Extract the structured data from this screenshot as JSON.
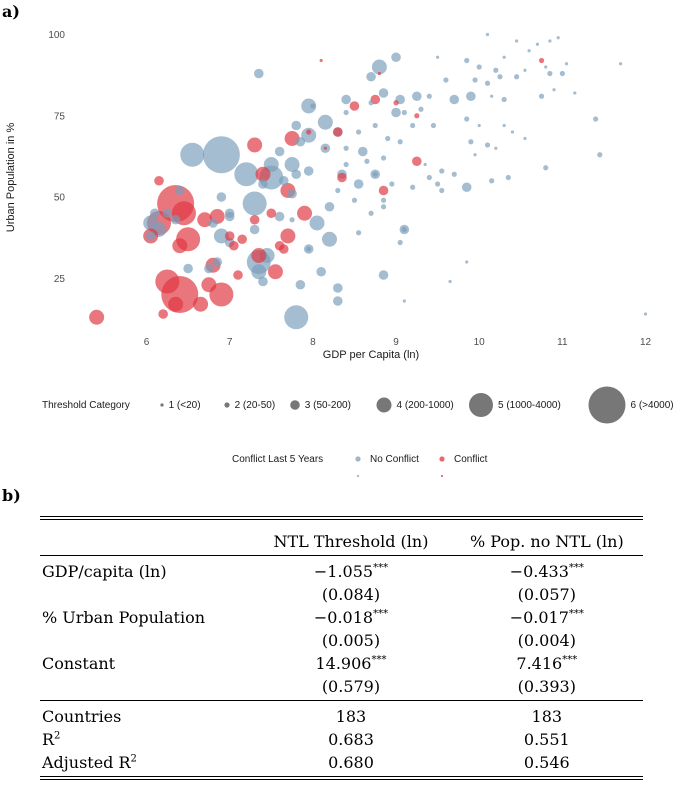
{
  "panel_a_letter": "a)",
  "panel_b_letter": "b)",
  "colors": {
    "no_conflict": "#7b9dbb",
    "conflict": "#e0353f",
    "size_legend": "#5f5f5f"
  },
  "chart_data": {
    "type": "scatter",
    "xlabel": "GDP per Capita (ln)",
    "ylabel": "Urban Population in %",
    "xlim": [
      5.2,
      12.15
    ],
    "ylim": [
      10,
      102
    ],
    "x_ticks": [
      6,
      7,
      8,
      9,
      10,
      11,
      12
    ],
    "y_ticks": [
      25,
      50,
      75,
      100
    ],
    "grid": false,
    "size_legend": {
      "title": "Threshold Category",
      "entries": [
        {
          "category": 1,
          "label": "1 (<20)"
        },
        {
          "category": 2,
          "label": "2 (20-50)"
        },
        {
          "category": 3,
          "label": "3 (50-200)"
        },
        {
          "category": 4,
          "label": "4 (200-1000)"
        },
        {
          "category": 5,
          "label": "5 (1000-4000)"
        },
        {
          "category": 6,
          "label": "6 (>4000)"
        }
      ]
    },
    "color_legend": {
      "title": "Conflict Last 5 Years",
      "entries": [
        {
          "label": "No Conflict",
          "color": "#7b9dbb"
        },
        {
          "label": "Conflict",
          "color": "#e0353f"
        }
      ]
    },
    "series": [
      {
        "name": "No Conflict",
        "color": "#7b9dbb",
        "points": [
          [
            10.1,
            100,
            1
          ],
          [
            10.45,
            98,
            1
          ],
          [
            10.7,
            97,
            1
          ],
          [
            10.85,
            98,
            1
          ],
          [
            10.95,
            99,
            1
          ],
          [
            10.6,
            95,
            1
          ],
          [
            11.7,
            91,
            1
          ],
          [
            10.3,
            93,
            1
          ],
          [
            10.55,
            89,
            1
          ],
          [
            10.8,
            90,
            1
          ],
          [
            11.05,
            91,
            1
          ],
          [
            9.5,
            93,
            1
          ],
          [
            9.85,
            92,
            2
          ],
          [
            10.0,
            90,
            2
          ],
          [
            10.2,
            89,
            2
          ],
          [
            9.95,
            86,
            2
          ],
          [
            10.1,
            85,
            2
          ],
          [
            10.25,
            87,
            2
          ],
          [
            10.45,
            87,
            2
          ],
          [
            10.85,
            88,
            2
          ],
          [
            11.0,
            88,
            2
          ],
          [
            10.9,
            83,
            1
          ],
          [
            11.15,
            82,
            1
          ],
          [
            10.75,
            81,
            2
          ],
          [
            10.3,
            80,
            2
          ],
          [
            10.15,
            81,
            1
          ],
          [
            9.6,
            86,
            2
          ],
          [
            9.4,
            81,
            2
          ],
          [
            9.7,
            80,
            3
          ],
          [
            9.9,
            81,
            3
          ],
          [
            9.3,
            77,
            2
          ],
          [
            9.2,
            72,
            2
          ],
          [
            9.45,
            72,
            2
          ],
          [
            9.85,
            74,
            2
          ],
          [
            10.0,
            72,
            1
          ],
          [
            10.3,
            72,
            1
          ],
          [
            10.4,
            70,
            1
          ],
          [
            10.55,
            68,
            1
          ],
          [
            9.9,
            67,
            2
          ],
          [
            10.1,
            66,
            2
          ],
          [
            10.2,
            65,
            1
          ],
          [
            9.95,
            63,
            1
          ],
          [
            11.4,
            74,
            2
          ],
          [
            11.45,
            63,
            2
          ],
          [
            8.7,
            79,
            2
          ],
          [
            8.85,
            82,
            3
          ],
          [
            9.05,
            80,
            3
          ],
          [
            9.25,
            81,
            3
          ],
          [
            9.0,
            76,
            3
          ],
          [
            9.1,
            76,
            2
          ],
          [
            8.75,
            72,
            2
          ],
          [
            8.4,
            76,
            2
          ],
          [
            8.3,
            70,
            3
          ],
          [
            8.55,
            70,
            2
          ],
          [
            8.9,
            68,
            2
          ],
          [
            9.05,
            67,
            2
          ],
          [
            8.6,
            64,
            3
          ],
          [
            8.4,
            65,
            2
          ],
          [
            8.4,
            60,
            2
          ],
          [
            8.65,
            61,
            2
          ],
          [
            8.85,
            62,
            2
          ],
          [
            9.35,
            60,
            1
          ],
          [
            9.55,
            58,
            2
          ],
          [
            9.7,
            57,
            2
          ],
          [
            9.4,
            56,
            2
          ],
          [
            9.5,
            54,
            2
          ],
          [
            8.75,
            57,
            2
          ],
          [
            8.95,
            54,
            2
          ],
          [
            9.2,
            53,
            2
          ],
          [
            9.55,
            52,
            2
          ],
          [
            9.85,
            53,
            3
          ],
          [
            10.15,
            55,
            2
          ],
          [
            10.35,
            56,
            2
          ],
          [
            10.8,
            59,
            2
          ],
          [
            8.8,
            90,
            4
          ],
          [
            9.0,
            93,
            3
          ],
          [
            8.7,
            87,
            3
          ],
          [
            8.4,
            80,
            3
          ],
          [
            8.15,
            73,
            4
          ],
          [
            8.0,
            78,
            2
          ],
          [
            7.95,
            69,
            4
          ],
          [
            8.15,
            65,
            3
          ],
          [
            8.35,
            57,
            3
          ],
          [
            8.3,
            52,
            2
          ],
          [
            8.5,
            49,
            2
          ],
          [
            8.55,
            54,
            3
          ],
          [
            8.75,
            57,
            3
          ],
          [
            9.1,
            40,
            2
          ],
          [
            9.05,
            36,
            2
          ],
          [
            8.85,
            49,
            2
          ],
          [
            8.7,
            45,
            2
          ],
          [
            8.55,
            39,
            2
          ],
          [
            8.85,
            47,
            2
          ],
          [
            7.95,
            78,
            4
          ],
          [
            7.8,
            72,
            3
          ],
          [
            7.35,
            88,
            3
          ],
          [
            7.6,
            64,
            3
          ],
          [
            7.85,
            67,
            3
          ],
          [
            7.5,
            60,
            4
          ],
          [
            7.75,
            60,
            4
          ],
          [
            7.95,
            58,
            3
          ],
          [
            7.65,
            55,
            3
          ],
          [
            7.75,
            51,
            3
          ],
          [
            7.4,
            54,
            3
          ],
          [
            8.2,
            47,
            3
          ],
          [
            8.05,
            42,
            4
          ],
          [
            8.2,
            37,
            4
          ],
          [
            7.6,
            44,
            3
          ],
          [
            7.75,
            43,
            2
          ],
          [
            7.95,
            34,
            2
          ],
          [
            7.95,
            34,
            3
          ],
          [
            9.1,
            40,
            3
          ],
          [
            6.55,
            63,
            5
          ],
          [
            6.9,
            63,
            6
          ],
          [
            7.2,
            57,
            5
          ],
          [
            7.3,
            48,
            5
          ],
          [
            7.5,
            56,
            5
          ],
          [
            7.8,
            57,
            3
          ],
          [
            6.9,
            50,
            3
          ],
          [
            7.0,
            45,
            3
          ],
          [
            6.9,
            38,
            4
          ],
          [
            7.0,
            36,
            3
          ],
          [
            7.3,
            40,
            3
          ],
          [
            7.45,
            32,
            4
          ],
          [
            7.35,
            27,
            4
          ],
          [
            7.4,
            24,
            3
          ],
          [
            7.35,
            30,
            5
          ],
          [
            6.85,
            30,
            3
          ],
          [
            6.75,
            28,
            3
          ],
          [
            6.5,
            28,
            3
          ],
          [
            6.15,
            40,
            4
          ],
          [
            6.05,
            38,
            3
          ],
          [
            6.25,
            45,
            3
          ],
          [
            6.35,
            43,
            3
          ],
          [
            6.4,
            52,
            3
          ],
          [
            6.1,
            45,
            3
          ],
          [
            6.05,
            42,
            4
          ],
          [
            6.8,
            42,
            3
          ],
          [
            7.0,
            44,
            3
          ],
          [
            8.1,
            27,
            3
          ],
          [
            8.3,
            22,
            3
          ],
          [
            8.3,
            18,
            3
          ],
          [
            7.85,
            23,
            3
          ],
          [
            7.8,
            13,
            5
          ],
          [
            8.85,
            26,
            3
          ],
          [
            9.1,
            18,
            1
          ],
          [
            9.85,
            30,
            1
          ],
          [
            9.65,
            24,
            1
          ],
          [
            12.0,
            14,
            1
          ]
        ]
      },
      {
        "name": "Conflict",
        "color": "#e0353f",
        "points": [
          [
            8.1,
            92,
            1
          ],
          [
            8.8,
            88,
            1
          ],
          [
            9.25,
            75,
            2
          ],
          [
            10.75,
            92,
            2
          ],
          [
            8.75,
            80,
            3
          ],
          [
            8.5,
            78,
            3
          ],
          [
            9.0,
            79,
            2
          ],
          [
            8.3,
            70,
            3
          ],
          [
            8.35,
            56,
            3
          ],
          [
            8.85,
            52,
            3
          ],
          [
            9.25,
            61,
            3
          ],
          [
            7.95,
            70,
            2
          ],
          [
            8.15,
            65,
            1
          ],
          [
            7.75,
            68,
            4
          ],
          [
            7.3,
            66,
            4
          ],
          [
            7.4,
            57,
            4
          ],
          [
            7.7,
            52,
            4
          ],
          [
            7.9,
            45,
            4
          ],
          [
            7.5,
            45,
            3
          ],
          [
            7.3,
            43,
            3
          ],
          [
            7.0,
            38,
            3
          ],
          [
            6.85,
            44,
            4
          ],
          [
            6.7,
            43,
            4
          ],
          [
            6.45,
            45,
            5
          ],
          [
            6.35,
            48,
            6
          ],
          [
            6.15,
            42,
            5
          ],
          [
            6.05,
            38,
            4
          ],
          [
            6.15,
            55,
            3
          ],
          [
            6.5,
            37,
            5
          ],
          [
            6.4,
            35,
            4
          ],
          [
            7.7,
            38,
            4
          ],
          [
            7.65,
            34,
            3
          ],
          [
            7.6,
            35,
            3
          ],
          [
            7.15,
            37,
            3
          ],
          [
            7.05,
            35,
            3
          ],
          [
            6.8,
            29,
            4
          ],
          [
            6.75,
            23,
            4
          ],
          [
            6.9,
            20,
            5
          ],
          [
            6.65,
            17,
            4
          ],
          [
            6.4,
            20,
            6
          ],
          [
            6.25,
            24,
            5
          ],
          [
            6.35,
            17,
            4
          ],
          [
            7.1,
            26,
            3
          ],
          [
            7.55,
            27,
            4
          ],
          [
            7.35,
            32,
            4
          ],
          [
            5.4,
            13,
            4
          ],
          [
            6.2,
            14,
            3
          ]
        ]
      }
    ]
  },
  "table": {
    "col_headers": [
      "",
      "NTL Threshold (ln)",
      "% Pop. no NTL (ln)"
    ],
    "coef_rows": [
      {
        "label": "GDP/capita (ln)",
        "v1": "−1.055",
        "s1": "***",
        "v2": "−0.433",
        "s2": "***"
      },
      {
        "label": "",
        "v1": "(0.084)",
        "s1": "",
        "v2": "(0.057)",
        "s2": ""
      },
      {
        "label": "% Urban Population",
        "v1": "−0.018",
        "s1": "***",
        "v2": "−0.017",
        "s2": "***"
      },
      {
        "label": "",
        "v1": "(0.005)",
        "s1": "",
        "v2": "(0.004)",
        "s2": ""
      },
      {
        "label": "Constant",
        "v1": "14.906",
        "s1": "***",
        "v2": "7.416",
        "s2": "***"
      },
      {
        "label": "",
        "v1": "(0.579)",
        "s1": "",
        "v2": "(0.393)",
        "s2": ""
      }
    ],
    "stat_rows": [
      {
        "label": "Countries",
        "label_sup": "",
        "v1": "183",
        "v2": "183"
      },
      {
        "label": "R",
        "label_sup": "2",
        "v1": "0.683",
        "v2": "0.551"
      },
      {
        "label": "Adjusted R",
        "label_sup": "2",
        "v1": "0.680",
        "v2": "0.546"
      }
    ]
  }
}
